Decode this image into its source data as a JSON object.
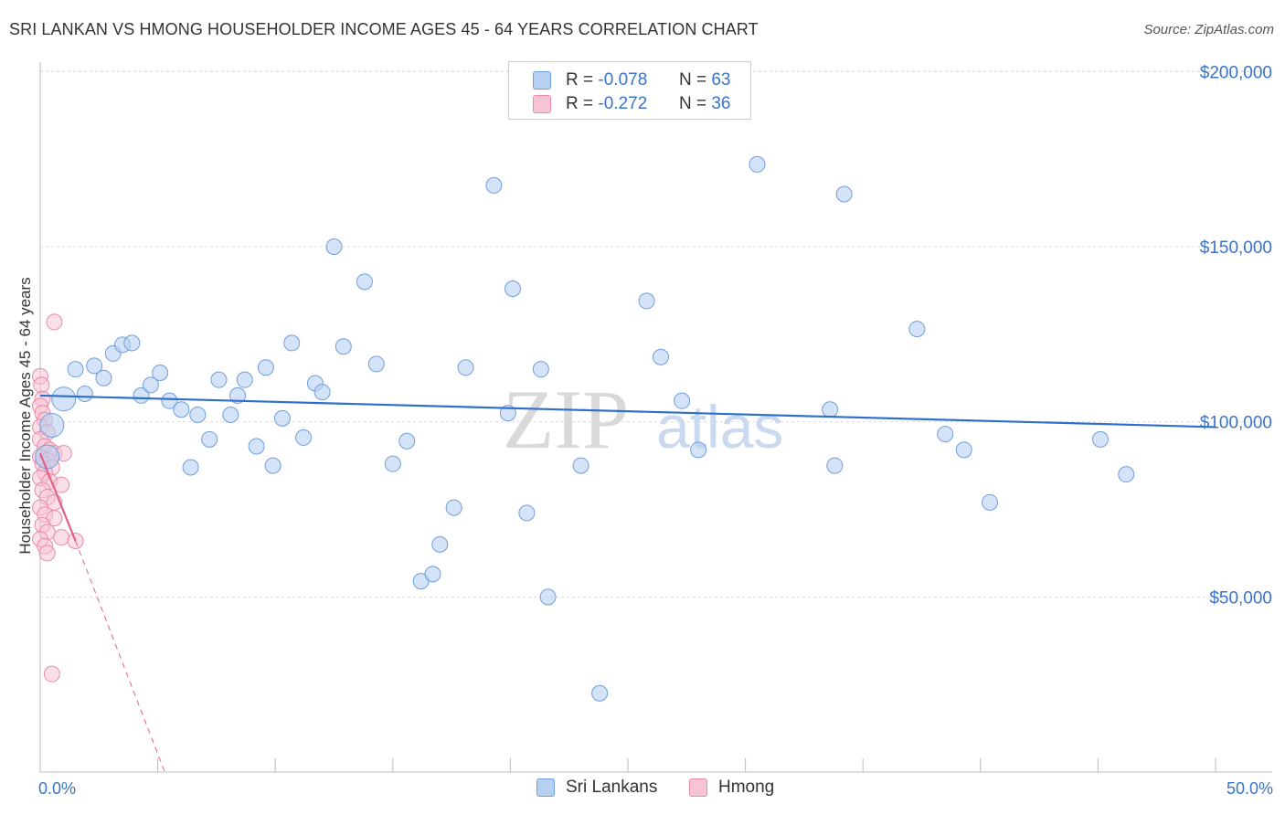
{
  "header": {
    "title": "SRI LANKAN VS HMONG HOUSEHOLDER INCOME AGES 45 - 64 YEARS CORRELATION CHART",
    "source": "Source: ZipAtlas.com"
  },
  "watermark": {
    "zip": "ZIP",
    "atlas": "atlas"
  },
  "colors": {
    "blue_fill": "#b7d0f2",
    "blue_stroke": "#6f9fdc",
    "blue_line": "#2f6fcc",
    "pink_fill": "#f6c4d4",
    "pink_stroke": "#e98aaa",
    "pink_line": "#e0608c",
    "axis_text": "#3a74c8",
    "grid": "#dcdcdc"
  },
  "legend": {
    "r_label": "R =",
    "n_label": "N =",
    "series": [
      {
        "name": "Sri Lankans",
        "r": "-0.078",
        "n": "63"
      },
      {
        "name": "Hmong",
        "r": "-0.272",
        "n": "36"
      }
    ]
  },
  "chart_data": {
    "type": "scatter",
    "title": "SRI LANKAN VS HMONG HOUSEHOLDER INCOME AGES 45 - 64 YEARS CORRELATION CHART",
    "xlabel": "",
    "ylabel": "Householder Income Ages 45 - 64 years",
    "xlim": [
      0,
      50
    ],
    "ylim": [
      0,
      210000
    ],
    "x_tick_labels": [
      "0.0%",
      "50.0%"
    ],
    "y_ticks": [
      50000,
      100000,
      150000,
      200000
    ],
    "y_tick_labels": [
      "$50,000",
      "$100,000",
      "$150,000",
      "$200,000"
    ],
    "grid": true,
    "legend_position": "top-center",
    "series": [
      {
        "name": "Sri Lankans",
        "r": -0.078,
        "n": 63,
        "trend": {
          "x": [
            0,
            50
          ],
          "y": [
            107500,
            98500
          ],
          "style": "solid"
        },
        "points": [
          {
            "x": 0.5,
            "y": 99000,
            "big": true
          },
          {
            "x": 1.0,
            "y": 106500,
            "big": true
          },
          {
            "x": 1.5,
            "y": 115000
          },
          {
            "x": 1.9,
            "y": 108000
          },
          {
            "x": 2.3,
            "y": 116000
          },
          {
            "x": 2.7,
            "y": 112500
          },
          {
            "x": 3.1,
            "y": 119500
          },
          {
            "x": 3.5,
            "y": 122000
          },
          {
            "x": 3.9,
            "y": 122500
          },
          {
            "x": 4.3,
            "y": 107500
          },
          {
            "x": 4.7,
            "y": 110500
          },
          {
            "x": 5.1,
            "y": 114000
          },
          {
            "x": 5.5,
            "y": 106000
          },
          {
            "x": 6.0,
            "y": 103500
          },
          {
            "x": 6.4,
            "y": 87000
          },
          {
            "x": 6.7,
            "y": 102000
          },
          {
            "x": 7.2,
            "y": 95000
          },
          {
            "x": 7.6,
            "y": 112000
          },
          {
            "x": 8.1,
            "y": 102000
          },
          {
            "x": 8.4,
            "y": 107500
          },
          {
            "x": 8.7,
            "y": 112000
          },
          {
            "x": 9.2,
            "y": 93000
          },
          {
            "x": 9.6,
            "y": 115500
          },
          {
            "x": 9.9,
            "y": 87500
          },
          {
            "x": 10.3,
            "y": 101000
          },
          {
            "x": 10.7,
            "y": 122500
          },
          {
            "x": 11.2,
            "y": 95500
          },
          {
            "x": 11.7,
            "y": 111000
          },
          {
            "x": 12.0,
            "y": 108500
          },
          {
            "x": 12.5,
            "y": 150000
          },
          {
            "x": 12.9,
            "y": 121500
          },
          {
            "x": 13.8,
            "y": 140000
          },
          {
            "x": 14.3,
            "y": 116500
          },
          {
            "x": 15.0,
            "y": 88000
          },
          {
            "x": 15.6,
            "y": 94500
          },
          {
            "x": 16.2,
            "y": 54500
          },
          {
            "x": 16.7,
            "y": 56500
          },
          {
            "x": 17.0,
            "y": 65000
          },
          {
            "x": 17.6,
            "y": 75500
          },
          {
            "x": 18.1,
            "y": 115500
          },
          {
            "x": 19.3,
            "y": 167500
          },
          {
            "x": 19.9,
            "y": 102500
          },
          {
            "x": 20.1,
            "y": 138000
          },
          {
            "x": 20.7,
            "y": 74000
          },
          {
            "x": 21.3,
            "y": 115000
          },
          {
            "x": 21.6,
            "y": 50000
          },
          {
            "x": 23.0,
            "y": 87500
          },
          {
            "x": 23.8,
            "y": 22500
          },
          {
            "x": 25.8,
            "y": 134500
          },
          {
            "x": 26.4,
            "y": 118500
          },
          {
            "x": 27.3,
            "y": 106000
          },
          {
            "x": 28.0,
            "y": 92000
          },
          {
            "x": 30.5,
            "y": 173500
          },
          {
            "x": 33.6,
            "y": 103500
          },
          {
            "x": 33.8,
            "y": 87500
          },
          {
            "x": 34.2,
            "y": 165000
          },
          {
            "x": 37.3,
            "y": 126500
          },
          {
            "x": 38.5,
            "y": 96500
          },
          {
            "x": 39.3,
            "y": 92000
          },
          {
            "x": 40.4,
            "y": 77000
          },
          {
            "x": 45.1,
            "y": 95000
          },
          {
            "x": 46.2,
            "y": 85000
          },
          {
            "x": 0.3,
            "y": 90000,
            "big": true
          }
        ]
      },
      {
        "name": "Hmong",
        "r": -0.272,
        "n": 36,
        "trend": {
          "x": [
            0,
            1.5
          ],
          "y": [
            91000,
            66000
          ],
          "style": "solid",
          "extension": {
            "x": [
              1.5,
              5.3
            ],
            "y": [
              66000,
              0
            ],
            "style": "dashed"
          }
        },
        "points": [
          {
            "x": 0.0,
            "y": 113000
          },
          {
            "x": 0.05,
            "y": 110500
          },
          {
            "x": 0.1,
            "y": 106500
          },
          {
            "x": 0.0,
            "y": 104500
          },
          {
            "x": 0.1,
            "y": 102500
          },
          {
            "x": 0.2,
            "y": 100500
          },
          {
            "x": 0.0,
            "y": 98500
          },
          {
            "x": 0.3,
            "y": 97000
          },
          {
            "x": 0.0,
            "y": 95000
          },
          {
            "x": 0.2,
            "y": 93000
          },
          {
            "x": 0.4,
            "y": 92000
          },
          {
            "x": 0.6,
            "y": 91000
          },
          {
            "x": 0.0,
            "y": 90000
          },
          {
            "x": 0.3,
            "y": 89000
          },
          {
            "x": 0.1,
            "y": 88000
          },
          {
            "x": 0.5,
            "y": 87000
          },
          {
            "x": 0.2,
            "y": 85500
          },
          {
            "x": 0.0,
            "y": 84000
          },
          {
            "x": 0.4,
            "y": 83000
          },
          {
            "x": 0.9,
            "y": 82000
          },
          {
            "x": 0.1,
            "y": 80500
          },
          {
            "x": 0.3,
            "y": 78500
          },
          {
            "x": 0.6,
            "y": 77000
          },
          {
            "x": 0.0,
            "y": 75500
          },
          {
            "x": 0.2,
            "y": 73500
          },
          {
            "x": 0.6,
            "y": 72500
          },
          {
            "x": 0.1,
            "y": 70500
          },
          {
            "x": 0.3,
            "y": 68500
          },
          {
            "x": 0.0,
            "y": 66500
          },
          {
            "x": 0.9,
            "y": 67000
          },
          {
            "x": 1.5,
            "y": 66000
          },
          {
            "x": 0.2,
            "y": 64500
          },
          {
            "x": 0.3,
            "y": 62500
          },
          {
            "x": 0.6,
            "y": 128500
          },
          {
            "x": 0.5,
            "y": 28000
          },
          {
            "x": 1.0,
            "y": 91000
          }
        ]
      }
    ]
  }
}
